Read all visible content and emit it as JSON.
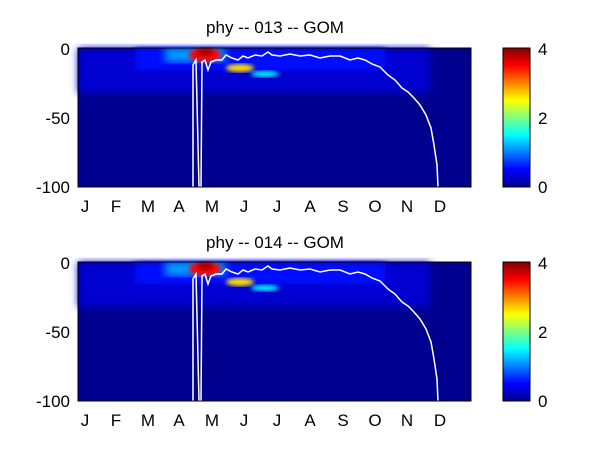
{
  "chart_data": [
    {
      "type": "heatmap",
      "title": "phy -- 013 -- GOM",
      "x_ticks": [
        "J",
        "F",
        "M",
        "A",
        "M",
        "J",
        "J",
        "A",
        "S",
        "O",
        "N",
        "D"
      ],
      "y_ticks": [
        "0",
        "-50",
        "-100"
      ],
      "ylim": [
        -100,
        0
      ],
      "colorbar": {
        "ticks": [
          "4",
          "2",
          "0"
        ],
        "range": [
          0,
          4
        ],
        "colormap": "jet"
      },
      "grid": false,
      "features": {
        "spring_bloom_peak": {
          "month": 4.75,
          "depth": -3,
          "value": 4
        },
        "subsurface_maximum": {
          "month_range": [
            5.4,
            6.2
          ],
          "depth_range": [
            -14,
            -22
          ],
          "value": 2.5
        },
        "winter_mixed_depth": [
          -100,
          0
        ],
        "summer_mixed_layer_depth": -8,
        "mixed_layer_deepens": {
          "start_month": 10.2,
          "bottom_month": 12.1,
          "depth": -100
        }
      }
    },
    {
      "type": "heatmap",
      "title": "phy -- 014 -- GOM",
      "x_ticks": [
        "J",
        "F",
        "M",
        "A",
        "M",
        "J",
        "J",
        "A",
        "S",
        "O",
        "N",
        "D"
      ],
      "y_ticks": [
        "0",
        "-50",
        "-100"
      ],
      "ylim": [
        -100,
        0
      ],
      "colorbar": {
        "ticks": [
          "4",
          "2",
          "0"
        ],
        "range": [
          0,
          4
        ],
        "colormap": "jet"
      },
      "grid": false,
      "features": {
        "spring_bloom_peak": {
          "month": 4.75,
          "depth": -3,
          "value": 4
        },
        "subsurface_maximum": {
          "month_range": [
            5.4,
            6.2
          ],
          "depth_range": [
            -14,
            -22
          ],
          "value": 2.5
        },
        "winter_mixed_depth": [
          -100,
          0
        ],
        "summer_mixed_layer_depth": -8,
        "mixed_layer_deepens": {
          "start_month": 10.2,
          "bottom_month": 12.1,
          "depth": -100
        }
      }
    }
  ]
}
